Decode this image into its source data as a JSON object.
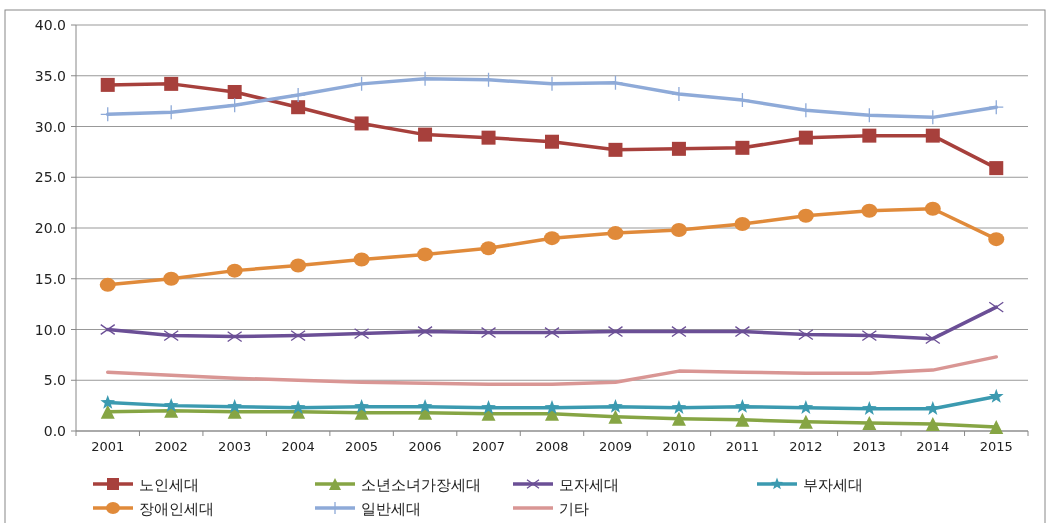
{
  "chart_data": {
    "type": "line",
    "categories": [
      "2001",
      "2002",
      "2003",
      "2004",
      "2005",
      "2006",
      "2007",
      "2008",
      "2009",
      "2010",
      "2011",
      "2012",
      "2013",
      "2014",
      "2015"
    ],
    "ylim": [
      0,
      40
    ],
    "yticks": [
      {
        "value": 0,
        "label": "0.0"
      },
      {
        "value": 5,
        "label": "5.0"
      },
      {
        "value": 10,
        "label": "10.0"
      },
      {
        "value": 15,
        "label": "15.0"
      },
      {
        "value": 20,
        "label": "20.0"
      },
      {
        "value": 25,
        "label": "25.0"
      },
      {
        "value": 30,
        "label": "30.0"
      },
      {
        "value": 35,
        "label": "35.0"
      },
      {
        "value": 40,
        "label": "40.0"
      }
    ],
    "grid": "y",
    "legend": "bottom",
    "series": [
      {
        "name": "노인세대",
        "color": "#a7403c",
        "marker": "square",
        "values": [
          34.1,
          34.2,
          33.4,
          31.9,
          30.3,
          29.2,
          28.9,
          28.5,
          27.7,
          27.8,
          27.9,
          28.9,
          29.1,
          29.1,
          25.9
        ]
      },
      {
        "name": "소년소녀가장세대",
        "color": "#86a544",
        "marker": "triangle",
        "values": [
          1.9,
          2.0,
          1.9,
          1.9,
          1.8,
          1.8,
          1.7,
          1.7,
          1.4,
          1.2,
          1.1,
          0.9,
          0.8,
          0.7,
          0.4
        ]
      },
      {
        "name": "모자세대",
        "color": "#6b4f96",
        "marker": "cross",
        "values": [
          10.0,
          9.4,
          9.3,
          9.4,
          9.6,
          9.8,
          9.7,
          9.7,
          9.8,
          9.8,
          9.8,
          9.5,
          9.4,
          9.1,
          12.2
        ]
      },
      {
        "name": "부자세대",
        "color": "#3b9ab0",
        "marker": "star",
        "values": [
          2.8,
          2.5,
          2.4,
          2.3,
          2.4,
          2.4,
          2.3,
          2.3,
          2.4,
          2.3,
          2.4,
          2.3,
          2.2,
          2.2,
          3.4
        ]
      },
      {
        "name": "장애인세대",
        "color": "#e08a3a",
        "marker": "circle",
        "values": [
          14.4,
          15.0,
          15.8,
          16.3,
          16.9,
          17.4,
          18.0,
          19.0,
          19.5,
          19.8,
          20.4,
          21.2,
          21.7,
          21.9,
          18.9
        ]
      },
      {
        "name": "일반세대",
        "color": "#8eaad8",
        "marker": "plus",
        "values": [
          31.2,
          31.4,
          32.1,
          33.1,
          34.2,
          34.7,
          34.6,
          34.2,
          34.3,
          33.2,
          32.6,
          31.6,
          31.1,
          30.9,
          31.9
        ]
      },
      {
        "name": "기타",
        "color": "#d99694",
        "marker": "none",
        "values": [
          5.8,
          5.5,
          5.2,
          5.0,
          4.8,
          4.7,
          4.6,
          4.6,
          4.8,
          5.9,
          5.8,
          5.7,
          5.7,
          6.0,
          7.3
        ]
      }
    ]
  }
}
